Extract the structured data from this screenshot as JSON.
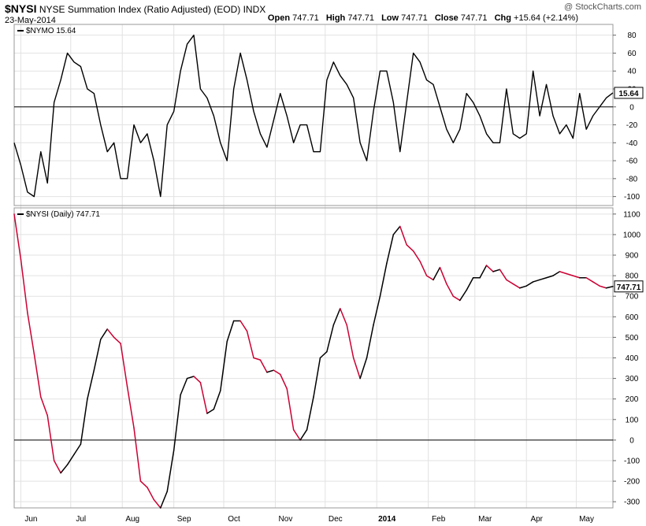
{
  "header": {
    "symbol": "$NYSI",
    "name": "NYSE Summation Index (Ratio Adjusted) (EOD)",
    "exchange": "INDX",
    "date": "23-May-2014",
    "watermark": "@ StockCharts.com",
    "quote": {
      "open_label": "Open",
      "open": "747.71",
      "high_label": "High",
      "high": "747.71",
      "low_label": "Low",
      "low": "747.71",
      "close_label": "Close",
      "close": "747.71",
      "chg_label": "Chg",
      "chg": "+15.64 (+2.14%)"
    }
  },
  "chart_data": [
    {
      "type": "line",
      "legend": "$NYMO 15.64",
      "last_value_label": "15.64",
      "ylim": [
        -110,
        92
      ],
      "yticks": [
        -100,
        -80,
        -60,
        -40,
        -20,
        0,
        20,
        40,
        60,
        80
      ],
      "zero_line": 0,
      "color": "#000000",
      "x": [
        "2013-05-28",
        "2013-06-01",
        "2013-06-05",
        "2013-06-09",
        "2013-06-13",
        "2013-06-17",
        "2013-06-21",
        "2013-06-25",
        "2013-06-29",
        "2013-07-03",
        "2013-07-07",
        "2013-07-11",
        "2013-07-15",
        "2013-07-19",
        "2013-07-23",
        "2013-07-27",
        "2013-07-31",
        "2013-08-04",
        "2013-08-08",
        "2013-08-12",
        "2013-08-16",
        "2013-08-20",
        "2013-08-24",
        "2013-08-28",
        "2013-09-01",
        "2013-09-05",
        "2013-09-09",
        "2013-09-13",
        "2013-09-17",
        "2013-09-21",
        "2013-09-25",
        "2013-09-29",
        "2013-10-03",
        "2013-10-07",
        "2013-10-11",
        "2013-10-15",
        "2013-10-19",
        "2013-10-23",
        "2013-10-27",
        "2013-10-31",
        "2013-11-04",
        "2013-11-08",
        "2013-11-12",
        "2013-11-16",
        "2013-11-20",
        "2013-11-24",
        "2013-11-28",
        "2013-12-02",
        "2013-12-06",
        "2013-12-10",
        "2013-12-14",
        "2013-12-18",
        "2013-12-22",
        "2013-12-26",
        "2013-12-30",
        "2014-01-03",
        "2014-01-07",
        "2014-01-11",
        "2014-01-15",
        "2014-01-19",
        "2014-01-23",
        "2014-01-27",
        "2014-01-31",
        "2014-02-04",
        "2014-02-08",
        "2014-02-12",
        "2014-02-16",
        "2014-02-20",
        "2014-02-24",
        "2014-02-28",
        "2014-03-04",
        "2014-03-08",
        "2014-03-12",
        "2014-03-16",
        "2014-03-20",
        "2014-03-24",
        "2014-03-28",
        "2014-04-01",
        "2014-04-05",
        "2014-04-09",
        "2014-04-13",
        "2014-04-17",
        "2014-04-21",
        "2014-04-25",
        "2014-04-29",
        "2014-05-03",
        "2014-05-07",
        "2014-05-11",
        "2014-05-15",
        "2014-05-19",
        "2014-05-23"
      ],
      "values": [
        -40,
        -65,
        -95,
        -100,
        -50,
        -85,
        5,
        30,
        60,
        50,
        45,
        20,
        15,
        -20,
        -50,
        -40,
        -80,
        -80,
        -20,
        -40,
        -30,
        -60,
        -100,
        -20,
        -5,
        40,
        70,
        80,
        20,
        10,
        -10,
        -40,
        -60,
        20,
        60,
        30,
        -5,
        -30,
        -45,
        -15,
        15,
        -10,
        -40,
        -20,
        -20,
        -50,
        -50,
        30,
        50,
        35,
        25,
        10,
        -40,
        -60,
        -5,
        40,
        40,
        5,
        -50,
        5,
        60,
        50,
        30,
        25,
        0,
        -25,
        -40,
        -25,
        15,
        5,
        -10,
        -30,
        -40,
        -40,
        20,
        -30,
        -35,
        -30,
        40,
        -10,
        25,
        -10,
        -30,
        -20,
        -35,
        15,
        -25,
        -10,
        0,
        10,
        15.64
      ]
    },
    {
      "type": "line",
      "legend": "$NYSI (Daily) 747.71",
      "last_value_label": "747.71",
      "ylim": [
        -330,
        1130
      ],
      "yticks": [
        -300,
        -200,
        -100,
        0,
        100,
        200,
        300,
        400,
        500,
        600,
        700,
        800,
        900,
        1000,
        1100
      ],
      "zero_line": 0,
      "up_color": "#000000",
      "down_color": "#cc0033",
      "x": [
        "2013-05-28",
        "2013-06-01",
        "2013-06-05",
        "2013-06-09",
        "2013-06-13",
        "2013-06-17",
        "2013-06-21",
        "2013-06-25",
        "2013-06-29",
        "2013-07-03",
        "2013-07-07",
        "2013-07-11",
        "2013-07-15",
        "2013-07-19",
        "2013-07-23",
        "2013-07-27",
        "2013-07-31",
        "2013-08-04",
        "2013-08-08",
        "2013-08-12",
        "2013-08-16",
        "2013-08-20",
        "2013-08-24",
        "2013-08-28",
        "2013-09-01",
        "2013-09-05",
        "2013-09-09",
        "2013-09-13",
        "2013-09-17",
        "2013-09-21",
        "2013-09-25",
        "2013-09-29",
        "2013-10-03",
        "2013-10-07",
        "2013-10-11",
        "2013-10-15",
        "2013-10-19",
        "2013-10-23",
        "2013-10-27",
        "2013-10-31",
        "2013-11-04",
        "2013-11-08",
        "2013-11-12",
        "2013-11-16",
        "2013-11-20",
        "2013-11-24",
        "2013-11-28",
        "2013-12-02",
        "2013-12-06",
        "2013-12-10",
        "2013-12-14",
        "2013-12-18",
        "2013-12-22",
        "2013-12-26",
        "2013-12-30",
        "2014-01-03",
        "2014-01-07",
        "2014-01-11",
        "2014-01-15",
        "2014-01-19",
        "2014-01-23",
        "2014-01-27",
        "2014-01-31",
        "2014-02-04",
        "2014-02-08",
        "2014-02-12",
        "2014-02-16",
        "2014-02-20",
        "2014-02-24",
        "2014-02-28",
        "2014-03-04",
        "2014-03-08",
        "2014-03-12",
        "2014-03-16",
        "2014-03-20",
        "2014-03-24",
        "2014-03-28",
        "2014-04-01",
        "2014-04-05",
        "2014-04-09",
        "2014-04-13",
        "2014-04-17",
        "2014-04-21",
        "2014-04-25",
        "2014-04-29",
        "2014-05-03",
        "2014-05-07",
        "2014-05-11",
        "2014-05-15",
        "2014-05-19",
        "2014-05-23"
      ],
      "values": [
        1100,
        880,
        620,
        420,
        210,
        120,
        -100,
        -160,
        -120,
        -70,
        -20,
        200,
        340,
        490,
        540,
        500,
        470,
        260,
        60,
        -200,
        -230,
        -290,
        -330,
        -250,
        -50,
        220,
        300,
        310,
        280,
        130,
        150,
        240,
        480,
        580,
        580,
        530,
        400,
        390,
        330,
        340,
        320,
        250,
        50,
        0,
        50,
        210,
        400,
        430,
        560,
        640,
        560,
        400,
        300,
        400,
        560,
        700,
        860,
        1000,
        1040,
        950,
        920,
        870,
        800,
        780,
        840,
        760,
        700,
        680,
        730,
        790,
        790,
        850,
        820,
        830,
        780,
        760,
        740,
        750,
        770,
        780,
        790,
        800,
        820,
        810,
        800,
        790,
        790,
        770,
        750,
        740,
        747.71
      ]
    }
  ],
  "x_axis": {
    "labels": [
      {
        "label": "Jun",
        "date": "2013-06-01"
      },
      {
        "label": "Jul",
        "date": "2013-07-01"
      },
      {
        "label": "Aug",
        "date": "2013-08-01"
      },
      {
        "label": "Sep",
        "date": "2013-09-01"
      },
      {
        "label": "Oct",
        "date": "2013-10-01"
      },
      {
        "label": "Nov",
        "date": "2013-11-01"
      },
      {
        "label": "Dec",
        "date": "2013-12-01"
      },
      {
        "label": "2014",
        "date": "2014-01-01"
      },
      {
        "label": "Feb",
        "date": "2014-02-01"
      },
      {
        "label": "Mar",
        "date": "2014-03-01"
      },
      {
        "label": "Apr",
        "date": "2014-04-01"
      },
      {
        "label": "May",
        "date": "2014-05-01"
      }
    ],
    "range": [
      "2013-05-28",
      "2014-05-23"
    ]
  }
}
